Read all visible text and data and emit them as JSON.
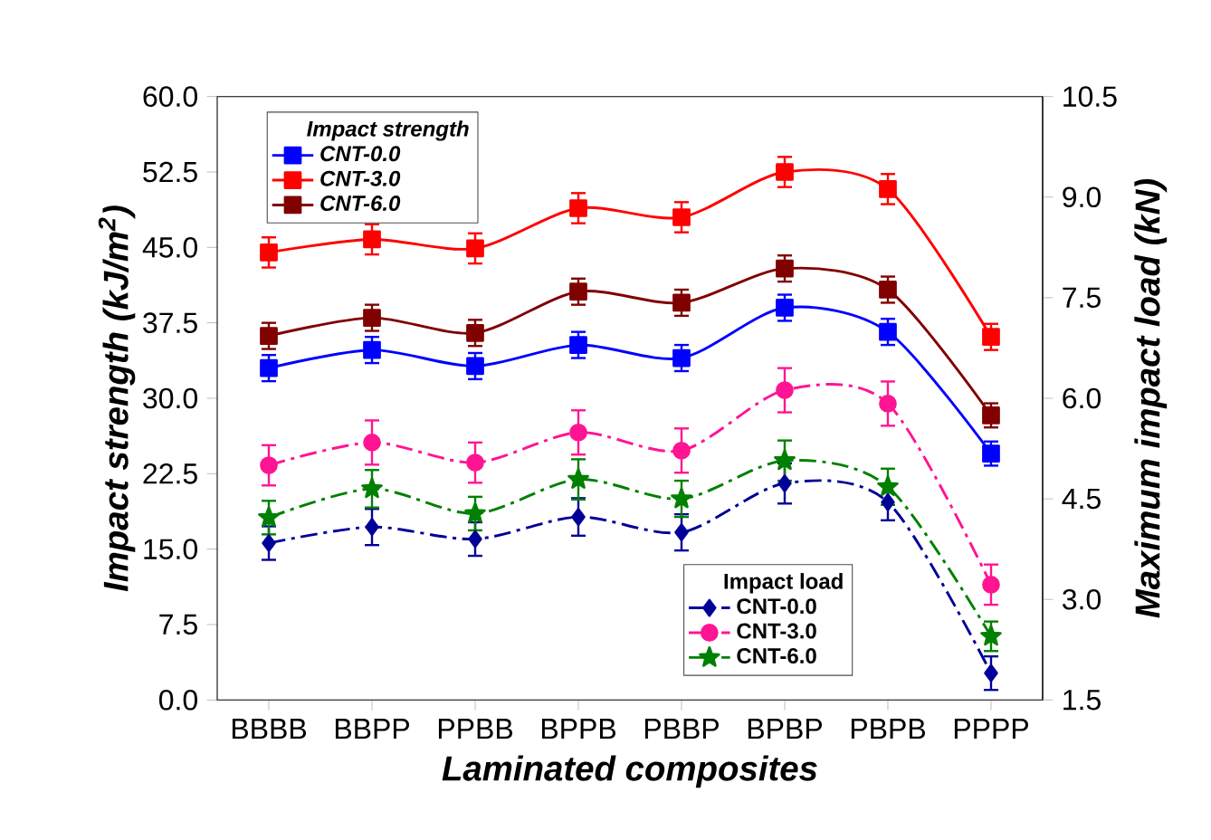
{
  "chart_data": {
    "type": "line",
    "xlabel": "Laminated composites",
    "ylabel": "Impact strength (kJ/m$^{2}$)",
    "y2label": "Maximum impact load (kN)",
    "legend_title": [
      "Impact strength",
      "Impact load"
    ],
    "legend": [
      "top left",
      "bottom right"
    ],
    "categories": [
      "BBBB",
      "BBPP",
      "PPBB",
      "BPPB",
      "PBBP",
      "BPBP",
      "PBPB",
      "PPPP"
    ],
    "ylim": [
      0,
      60
    ],
    "yticks": [
      {
        "value": 0,
        "label": "0.0"
      },
      {
        "value": 7.5,
        "label": "7.5"
      },
      {
        "value": 15,
        "label": "15.0"
      },
      {
        "value": 22.5,
        "label": "22.5"
      },
      {
        "value": 30,
        "label": "30.0"
      },
      {
        "value": 37.5,
        "label": "37.5"
      },
      {
        "value": 45,
        "label": "45.0"
      },
      {
        "value": 52.5,
        "label": "52.5"
      },
      {
        "value": 60,
        "label": "60.0"
      }
    ],
    "y2lim": [
      1.5,
      10.5
    ],
    "y2ticks": [
      {
        "value": 1.5,
        "label": "1.5"
      },
      {
        "value": 3,
        "label": "3.0"
      },
      {
        "value": 4.5,
        "label": "4.5"
      },
      {
        "value": 6,
        "label": "6.0"
      },
      {
        "value": 7.5,
        "label": "7.5"
      },
      {
        "value": 9,
        "label": "9.0"
      },
      {
        "value": 10.5,
        "label": "10.5"
      }
    ],
    "grid": false,
    "series": [
      {
        "name": "CNT-0.0",
        "color": "#0000ff",
        "marker": "square",
        "line_style": "solid",
        "values": [
          33.0,
          34.8,
          33.2,
          35.3,
          34.0,
          39.0,
          36.6,
          24.5
        ],
        "errors": [
          1.3,
          1.3,
          1.3,
          1.3,
          1.3,
          1.3,
          1.3,
          1.2
        ]
      },
      {
        "name": "CNT-3.0",
        "color": "#ff0000",
        "marker": "square",
        "line_style": "solid",
        "values": [
          44.5,
          45.8,
          44.9,
          48.9,
          48.0,
          52.5,
          50.8,
          36.1
        ],
        "errors": [
          1.5,
          1.5,
          1.5,
          1.5,
          1.5,
          1.5,
          1.5,
          1.3
        ]
      },
      {
        "name": "CNT-6.0",
        "color": "#800000",
        "marker": "square",
        "line_style": "solid",
        "values": [
          36.2,
          38.0,
          36.5,
          40.6,
          39.5,
          42.9,
          40.8,
          28.3
        ],
        "errors": [
          1.3,
          1.3,
          1.3,
          1.3,
          1.3,
          1.3,
          1.3,
          1.2
        ]
      },
      {
        "name": "CNT-0.0",
        "color": "#000099",
        "marker": "diamond",
        "line_style": "dashed",
        "axis": "y2",
        "values": [
          3.84,
          4.08,
          3.9,
          4.23,
          4.0,
          4.73,
          4.45,
          1.9
        ],
        "errors": [
          0.25,
          0.27,
          0.25,
          0.28,
          0.27,
          0.3,
          0.27,
          0.25
        ]
      },
      {
        "name": "CNT-3.0",
        "color": "#ff1493",
        "marker": "circle",
        "line_style": "dashed",
        "axis": "y2",
        "values": [
          5.0,
          5.34,
          5.04,
          5.49,
          5.22,
          6.12,
          5.92,
          3.22
        ],
        "errors": [
          0.3,
          0.33,
          0.3,
          0.33,
          0.33,
          0.33,
          0.33,
          0.3
        ]
      },
      {
        "name": "CNT-6.0",
        "color": "#008000",
        "marker": "star",
        "line_style": "dashed",
        "axis": "y2",
        "values": [
          4.22,
          4.65,
          4.28,
          4.79,
          4.5,
          5.07,
          4.68,
          2.45
        ],
        "errors": [
          0.25,
          0.28,
          0.25,
          0.3,
          0.27,
          0.3,
          0.27,
          0.22
        ]
      }
    ]
  }
}
